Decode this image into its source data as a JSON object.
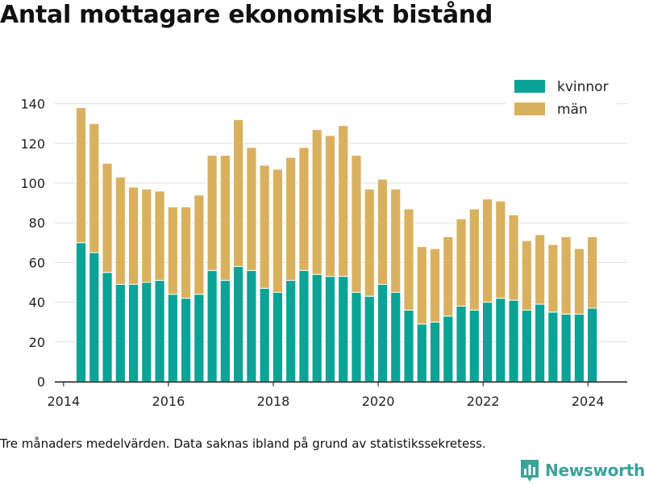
{
  "title": "Antal mottagare ekonomiskt bistånd",
  "footnote": "Tre månaders medelvärden. Data saknas ibland på grund av statistikssekretess.",
  "brand": {
    "name": "Newsworthy",
    "icon": "bar-chart-logo-icon",
    "color": "#3aa39a"
  },
  "chart_data": {
    "type": "bar",
    "stacked": true,
    "x_tick_labels": [
      "2014",
      "2016",
      "2018",
      "2020",
      "2022",
      "2024"
    ],
    "y_tick_labels": [
      "0",
      "20",
      "40",
      "60",
      "80",
      "100",
      "120",
      "140"
    ],
    "ylim": [
      0,
      150
    ],
    "xlim": [
      "2013-11",
      "2024-10"
    ],
    "grid": true,
    "legend_position": "top-right",
    "x": [
      "2014-05",
      "2014-08",
      "2014-11",
      "2015-02",
      "2015-05",
      "2015-08",
      "2015-11",
      "2016-02",
      "2016-05",
      "2016-08",
      "2016-11",
      "2017-02",
      "2017-05",
      "2017-08",
      "2017-11",
      "2018-02",
      "2018-05",
      "2018-08",
      "2018-11",
      "2019-02",
      "2019-05",
      "2019-08",
      "2019-11",
      "2020-02",
      "2020-05",
      "2020-08",
      "2020-11",
      "2021-02",
      "2021-05",
      "2021-08",
      "2021-11",
      "2022-02",
      "2022-05",
      "2022-08",
      "2022-11",
      "2023-02",
      "2023-05",
      "2023-08",
      "2023-11",
      "2024-02"
    ],
    "series": [
      {
        "name": "kvinnor",
        "color": "#0aa396",
        "values": [
          70,
          65,
          55,
          49,
          49,
          50,
          51,
          44,
          42,
          44,
          56,
          51,
          58,
          56,
          47,
          45,
          51,
          56,
          54,
          53,
          53,
          45,
          43,
          49,
          45,
          36,
          29,
          30,
          33,
          38,
          36,
          40,
          42,
          41,
          36,
          39,
          35,
          34,
          34,
          37
        ]
      },
      {
        "name": "män",
        "color": "#d9b15e",
        "values": [
          68,
          65,
          55,
          54,
          49,
          47,
          45,
          44,
          46,
          50,
          58,
          63,
          74,
          62,
          62,
          62,
          62,
          62,
          73,
          71,
          76,
          69,
          54,
          53,
          52,
          51,
          39,
          37,
          40,
          44,
          51,
          52,
          49,
          43,
          35,
          35,
          34,
          39,
          33,
          36
        ]
      }
    ]
  }
}
